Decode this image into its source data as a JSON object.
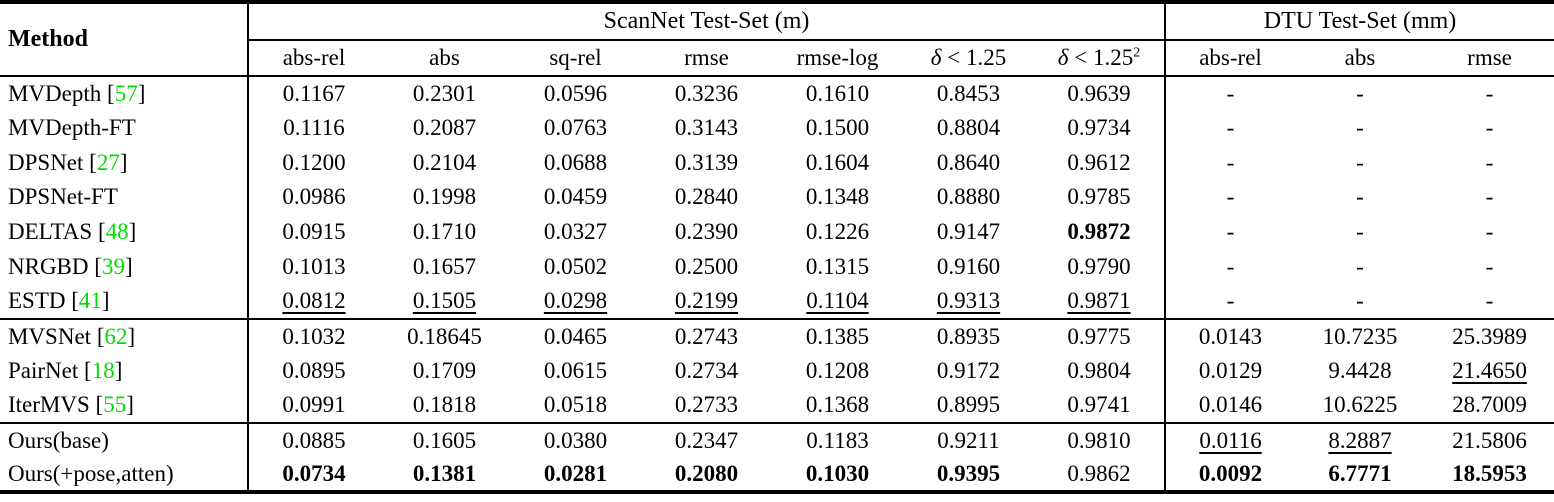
{
  "table": {
    "method_header": "Method",
    "colors": {
      "citation_green": "#00dd00"
    },
    "groups": [
      {
        "label": "ScanNet Test-Set (m)",
        "columns": [
          {
            "label": "abs-rel"
          },
          {
            "label": "abs"
          },
          {
            "label": "sq-rel"
          },
          {
            "label": "rmse"
          },
          {
            "label": "rmse-log"
          },
          {
            "label": "δ < 1.25"
          },
          {
            "label": "δ < 1.25",
            "sup": "2"
          }
        ]
      },
      {
        "label": "DTU Test-Set (mm)",
        "columns": [
          {
            "label": "abs-rel"
          },
          {
            "label": "abs"
          },
          {
            "label": "rmse"
          }
        ]
      }
    ],
    "rows": [
      {
        "name": "MVDepth",
        "cite": "57",
        "values": [
          "0.1167",
          "0.2301",
          "0.0596",
          "0.3236",
          "0.1610",
          "0.8453",
          "0.9639",
          "-",
          "-",
          "-"
        ],
        "bold": [],
        "underline": []
      },
      {
        "name": "MVDepth-FT",
        "cite": null,
        "values": [
          "0.1116",
          "0.2087",
          "0.0763",
          "0.3143",
          "0.1500",
          "0.8804",
          "0.9734",
          "-",
          "-",
          "-"
        ],
        "bold": [],
        "underline": []
      },
      {
        "name": "DPSNet",
        "cite": "27",
        "values": [
          "0.1200",
          "0.2104",
          "0.0688",
          "0.3139",
          "0.1604",
          "0.8640",
          "0.9612",
          "-",
          "-",
          "-"
        ],
        "bold": [],
        "underline": []
      },
      {
        "name": "DPSNet-FT",
        "cite": null,
        "values": [
          "0.0986",
          "0.1998",
          "0.0459",
          "0.2840",
          "0.1348",
          "0.8880",
          "0.9785",
          "-",
          "-",
          "-"
        ],
        "bold": [],
        "underline": []
      },
      {
        "name": "DELTAS",
        "cite": "48",
        "values": [
          "0.0915",
          "0.1710",
          "0.0327",
          "0.2390",
          "0.1226",
          "0.9147",
          "0.9872",
          "-",
          "-",
          "-"
        ],
        "bold": [
          6
        ],
        "underline": []
      },
      {
        "name": "NRGBD",
        "cite": "39",
        "values": [
          "0.1013",
          "0.1657",
          "0.0502",
          "0.2500",
          "0.1315",
          "0.9160",
          "0.9790",
          "-",
          "-",
          "-"
        ],
        "bold": [],
        "underline": []
      },
      {
        "name": "ESTD",
        "cite": "41",
        "values": [
          "0.0812",
          "0.1505",
          "0.0298",
          "0.2199",
          "0.1104",
          "0.9313",
          "0.9871",
          "-",
          "-",
          "-"
        ],
        "bold": [],
        "underline": [
          0,
          1,
          2,
          3,
          4,
          5,
          6
        ]
      },
      {
        "name": "MVSNet",
        "cite": "62",
        "separator_above": true,
        "values": [
          "0.1032",
          "0.18645",
          "0.0465",
          "0.2743",
          "0.1385",
          "0.8935",
          "0.9775",
          "0.0143",
          "10.7235",
          "25.3989"
        ],
        "bold": [],
        "underline": []
      },
      {
        "name": "PairNet",
        "cite": "18",
        "values": [
          "0.0895",
          "0.1709",
          "0.0615",
          "0.2734",
          "0.1208",
          "0.9172",
          "0.9804",
          "0.0129",
          "9.4428",
          "21.4650"
        ],
        "bold": [],
        "underline": [
          9
        ]
      },
      {
        "name": "IterMVS",
        "cite": "55",
        "values": [
          "0.0991",
          "0.1818",
          "0.0518",
          "0.2733",
          "0.1368",
          "0.8995",
          "0.9741",
          "0.0146",
          "10.6225",
          "28.7009"
        ],
        "bold": [],
        "underline": []
      },
      {
        "name": "Ours(base)",
        "cite": null,
        "separator_above": true,
        "values": [
          "0.0885",
          "0.1605",
          "0.0380",
          "0.2347",
          "0.1183",
          "0.9211",
          "0.9810",
          "0.0116",
          "8.2887",
          "21.5806"
        ],
        "bold": [],
        "underline": [
          7,
          8
        ]
      },
      {
        "name": "Ours(+pose,atten)",
        "cite": null,
        "values": [
          "0.0734",
          "0.1381",
          "0.0281",
          "0.2080",
          "0.1030",
          "0.9395",
          "0.9862",
          "0.0092",
          "6.7771",
          "18.5953"
        ],
        "bold": [
          0,
          1,
          2,
          3,
          4,
          5,
          7,
          8,
          9
        ],
        "underline": []
      }
    ]
  }
}
